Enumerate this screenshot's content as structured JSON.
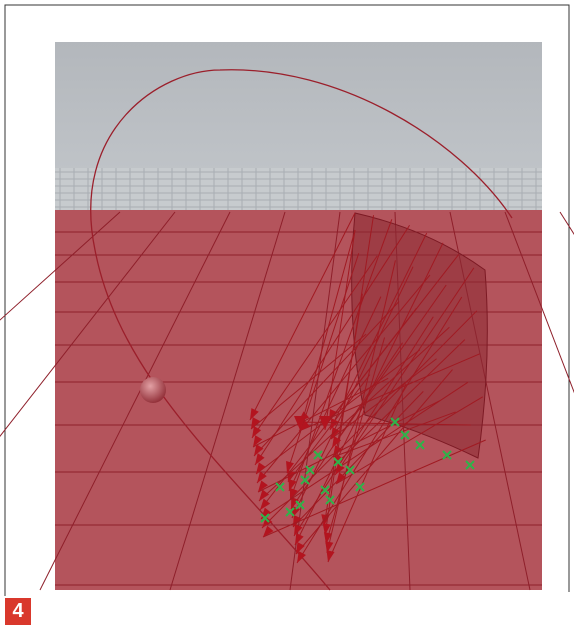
{
  "figure": {
    "label": "4"
  }
}
